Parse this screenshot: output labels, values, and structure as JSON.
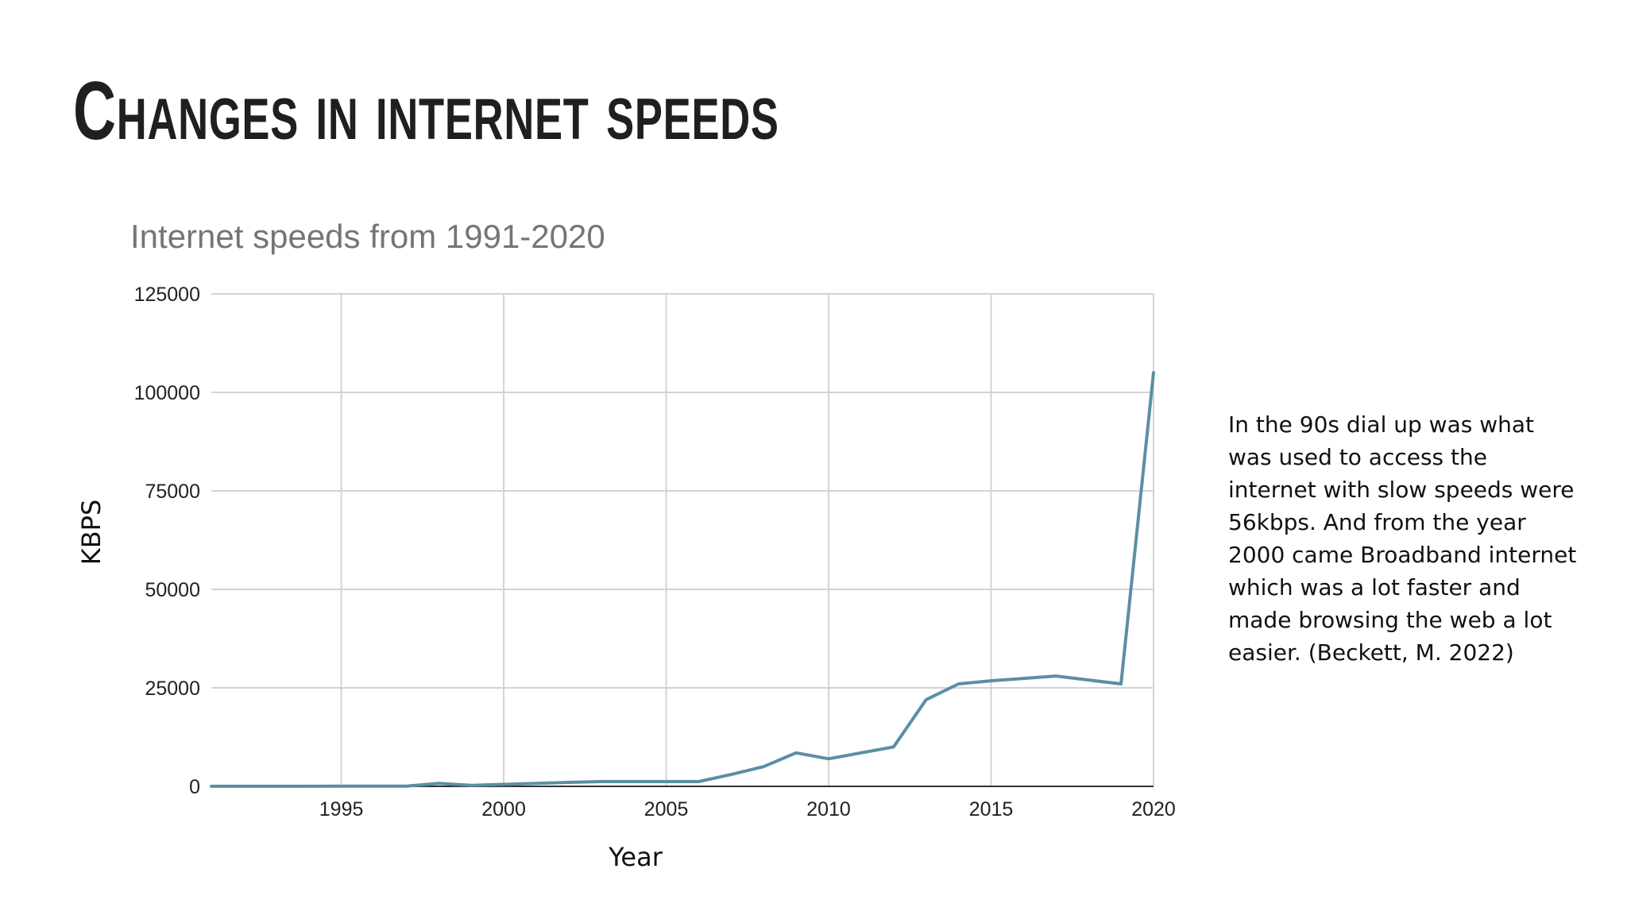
{
  "slide": {
    "title": "Changes in internet speeds",
    "side_text": "In the 90s dial up was what was used to access the internet with slow speeds were 56kbps. And from the year 2000 came Broadband internet which was a lot faster and made browsing the web a lot easier. (Beckett, M. 2022)"
  },
  "colors": {
    "line": "#5b8fa3",
    "grid": "#d3d3d3",
    "title_gray": "#757575",
    "tick": "#222222"
  },
  "chart_data": {
    "type": "line",
    "title": "Internet speeds from 1991-2020",
    "xlabel": "Year",
    "ylabel": "KBPS",
    "xlim": [
      1991,
      2020
    ],
    "ylim": [
      0,
      125000
    ],
    "x_ticks": [
      1995,
      2000,
      2005,
      2010,
      2015,
      2020
    ],
    "y_ticks": [
      0,
      25000,
      50000,
      75000,
      100000,
      125000
    ],
    "grid": true,
    "series": [
      {
        "name": "KBPS",
        "x": [
          1991,
          1992,
          1993,
          1994,
          1995,
          1996,
          1997,
          1998,
          1999,
          2000,
          2001,
          2002,
          2003,
          2004,
          2005,
          2006,
          2007,
          2008,
          2009,
          2010,
          2011,
          2012,
          2013,
          2014,
          2015,
          2016,
          2017,
          2018,
          2019,
          2020
        ],
        "values": [
          14,
          28,
          28,
          28,
          56,
          56,
          56,
          768,
          256,
          512,
          768,
          1000,
          1200,
          1200,
          1200,
          1200,
          3000,
          5000,
          8500,
          7000,
          8500,
          10000,
          22000,
          26000,
          26800,
          27400,
          28000,
          27000,
          26000,
          105000
        ]
      }
    ]
  }
}
